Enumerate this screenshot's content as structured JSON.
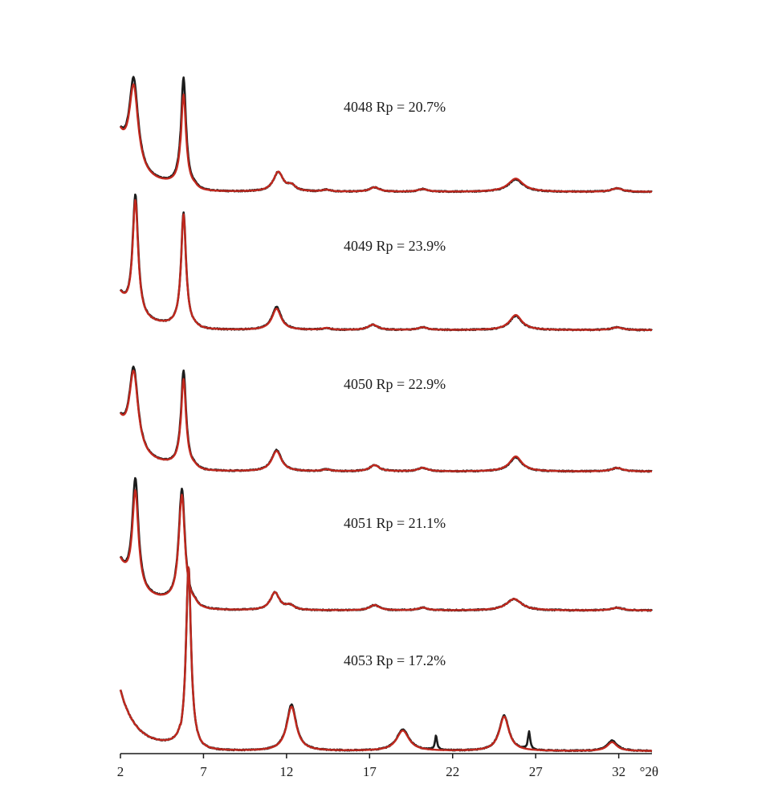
{
  "chart_data": {
    "type": "line",
    "title": "",
    "xlabel": "°2θ",
    "ylabel": "",
    "xlim": [
      2,
      34
    ],
    "x_ticks": [
      "2",
      "7",
      "12",
      "17",
      "22",
      "27",
      "32"
    ],
    "x_tick_values": [
      2,
      7,
      12,
      17,
      22,
      27,
      32
    ],
    "grid": false,
    "legend": "none",
    "colors": {
      "observed": "#1c1c1c",
      "calculated": "#c0281e",
      "axis": "#1a1a1a"
    },
    "panels": [
      {
        "label": "4048 Rp = 20.7%",
        "baseline": 0.01,
        "start_level": 0.62,
        "valley_level": 0.08,
        "peaks": [
          {
            "x": 2.8,
            "obs": 1.0,
            "calc": 0.92,
            "width": 0.32
          },
          {
            "x": 5.8,
            "obs": 1.24,
            "calc": 1.05,
            "width": 0.18
          },
          {
            "x": 11.5,
            "obs": 0.22,
            "calc": 0.22,
            "width": 0.35
          },
          {
            "x": 12.3,
            "obs": 0.06,
            "calc": 0.06,
            "width": 0.3
          },
          {
            "x": 14.4,
            "obs": 0.02,
            "calc": 0.02,
            "width": 0.3
          },
          {
            "x": 17.3,
            "obs": 0.05,
            "calc": 0.05,
            "width": 0.35
          },
          {
            "x": 20.2,
            "obs": 0.03,
            "calc": 0.03,
            "width": 0.35
          },
          {
            "x": 25.8,
            "obs": 0.14,
            "calc": 0.15,
            "width": 0.55
          },
          {
            "x": 31.9,
            "obs": 0.04,
            "calc": 0.04,
            "width": 0.4
          }
        ]
      },
      {
        "label": "4049 Rp = 23.9%",
        "baseline": 0.01,
        "start_level": 0.4,
        "valley_level": 0.05,
        "peaks": [
          {
            "x": 2.9,
            "obs": 1.36,
            "calc": 1.3,
            "width": 0.2
          },
          {
            "x": 5.8,
            "obs": 1.3,
            "calc": 1.28,
            "width": 0.18
          },
          {
            "x": 11.4,
            "obs": 0.26,
            "calc": 0.24,
            "width": 0.33
          },
          {
            "x": 14.4,
            "obs": 0.02,
            "calc": 0.02,
            "width": 0.3
          },
          {
            "x": 17.2,
            "obs": 0.06,
            "calc": 0.06,
            "width": 0.35
          },
          {
            "x": 20.2,
            "obs": 0.03,
            "calc": 0.03,
            "width": 0.35
          },
          {
            "x": 25.8,
            "obs": 0.16,
            "calc": 0.17,
            "width": 0.45
          },
          {
            "x": 31.9,
            "obs": 0.03,
            "calc": 0.03,
            "width": 0.4
          }
        ]
      },
      {
        "label": "4050 Rp = 22.9%",
        "baseline": 0.01,
        "start_level": 0.55,
        "valley_level": 0.07,
        "peaks": [
          {
            "x": 2.8,
            "obs": 0.92,
            "calc": 0.88,
            "width": 0.32
          },
          {
            "x": 5.8,
            "obs": 1.1,
            "calc": 1.0,
            "width": 0.18
          },
          {
            "x": 11.4,
            "obs": 0.24,
            "calc": 0.23,
            "width": 0.35
          },
          {
            "x": 14.4,
            "obs": 0.02,
            "calc": 0.02,
            "width": 0.3
          },
          {
            "x": 17.3,
            "obs": 0.07,
            "calc": 0.07,
            "width": 0.35
          },
          {
            "x": 20.2,
            "obs": 0.04,
            "calc": 0.04,
            "width": 0.35
          },
          {
            "x": 25.8,
            "obs": 0.16,
            "calc": 0.17,
            "width": 0.45
          },
          {
            "x": 31.9,
            "obs": 0.04,
            "calc": 0.04,
            "width": 0.4
          }
        ]
      },
      {
        "label": "4051 Rp = 21.1%",
        "baseline": 0.01,
        "start_level": 0.55,
        "valley_level": 0.1,
        "peaks": [
          {
            "x": 2.9,
            "obs": 1.24,
            "calc": 1.1,
            "width": 0.22
          },
          {
            "x": 5.7,
            "obs": 1.32,
            "calc": 1.25,
            "width": 0.22
          },
          {
            "x": 11.3,
            "obs": 0.2,
            "calc": 0.2,
            "width": 0.33
          },
          {
            "x": 12.2,
            "obs": 0.05,
            "calc": 0.05,
            "width": 0.3
          },
          {
            "x": 17.3,
            "obs": 0.06,
            "calc": 0.06,
            "width": 0.35
          },
          {
            "x": 20.2,
            "obs": 0.03,
            "calc": 0.03,
            "width": 0.35
          },
          {
            "x": 25.7,
            "obs": 0.13,
            "calc": 0.13,
            "width": 0.55
          },
          {
            "x": 31.9,
            "obs": 0.03,
            "calc": 0.03,
            "width": 0.4
          }
        ]
      },
      {
        "label": "4053 Rp = 17.2%",
        "baseline": 0.01,
        "start_level": 0.7,
        "valley_level": 0.07,
        "peaks": [
          {
            "x": 6.1,
            "obs": 2.05,
            "calc": 2.05,
            "width": 0.18
          },
          {
            "x": 12.3,
            "obs": 0.52,
            "calc": 0.5,
            "width": 0.35
          },
          {
            "x": 19.0,
            "obs": 0.24,
            "calc": 0.23,
            "width": 0.45
          },
          {
            "x": 21.0,
            "obs": 0.16,
            "calc": 0.0,
            "width": 0.08
          },
          {
            "x": 25.1,
            "obs": 0.4,
            "calc": 0.39,
            "width": 0.35
          },
          {
            "x": 26.6,
            "obs": 0.2,
            "calc": 0.0,
            "width": 0.08
          },
          {
            "x": 31.6,
            "obs": 0.12,
            "calc": 0.1,
            "width": 0.35
          }
        ]
      }
    ]
  }
}
